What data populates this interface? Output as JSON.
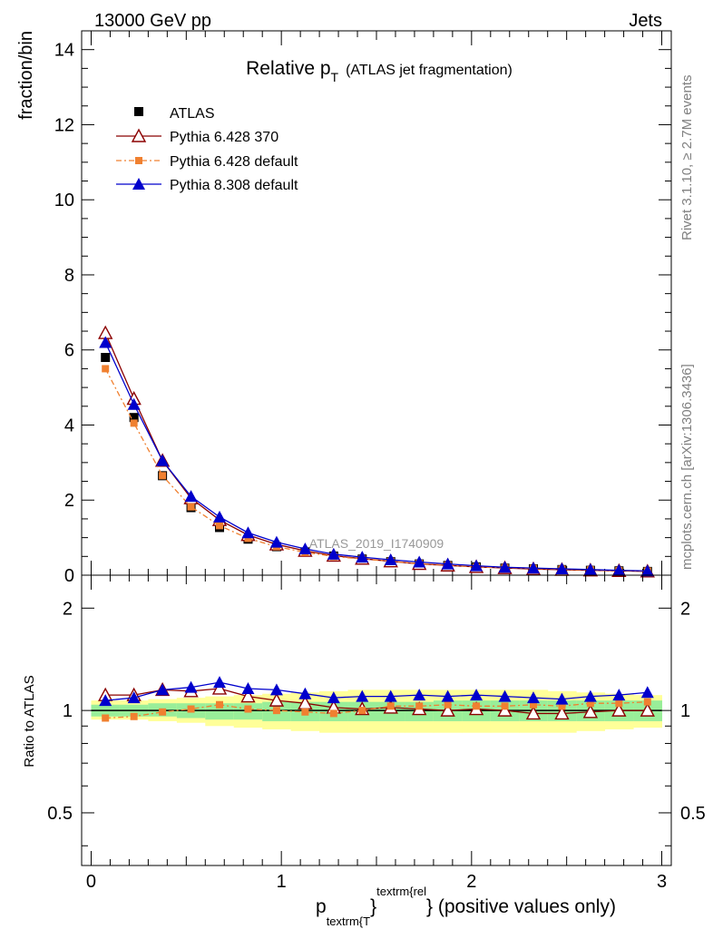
{
  "header": {
    "left": "13000 GeV pp",
    "right": "Jets"
  },
  "side_texts": {
    "rivet": "Rivet 3.1.10, ≥ 2.7M events",
    "mcplots": "mcplots.cern.ch [arXiv:1306.3436]"
  },
  "chart_data": {
    "type": "line",
    "title": "Relative p",
    "title_sub": "T",
    "title_suffix": "(ATLAS jet fragmentation)",
    "watermark": "ATLAS_2019_I1740909",
    "xlabel": {
      "p": "p",
      "sub": "textrm{T",
      "brace": "}",
      "sup": "textrm{rel",
      "tail": "} (positive values only)"
    },
    "ylabel": "fraction/bin",
    "ratio_ylabel": "Ratio to ATLAS",
    "xlim": [
      -0.05,
      3.05
    ],
    "ylim": [
      0,
      14.5
    ],
    "ratio_ylim_log": [
      0.35,
      2.5
    ],
    "x_ticks": [
      0,
      1,
      2,
      3
    ],
    "y_ticks": [
      0,
      2,
      4,
      6,
      8,
      10,
      12,
      14
    ],
    "ratio_ticks": [
      0.5,
      1,
      2
    ],
    "x": [
      0.075,
      0.225,
      0.375,
      0.525,
      0.675,
      0.825,
      0.975,
      1.125,
      1.275,
      1.425,
      1.575,
      1.725,
      1.875,
      2.025,
      2.175,
      2.325,
      2.475,
      2.625,
      2.775,
      2.925
    ],
    "series": [
      {
        "name": "ATLAS",
        "color": "#000000",
        "marker": "square-filled",
        "line": "none",
        "values": [
          5.8,
          4.2,
          2.65,
          1.8,
          1.27,
          0.96,
          0.76,
          0.62,
          0.51,
          0.43,
          0.36,
          0.3,
          0.26,
          0.22,
          0.19,
          0.17,
          0.15,
          0.13,
          0.115,
          0.1
        ]
      },
      {
        "name": "Pythia 6.428 370",
        "color": "#8b0000",
        "marker": "triangle-open",
        "line": "solid",
        "values": [
          6.45,
          4.7,
          3.05,
          2.05,
          1.47,
          1.07,
          0.82,
          0.65,
          0.52,
          0.44,
          0.37,
          0.3,
          0.26,
          0.22,
          0.19,
          0.165,
          0.145,
          0.13,
          0.115,
          0.1
        ]
      },
      {
        "name": "Pythia 6.428 default",
        "color": "#f08030",
        "marker": "square-small",
        "line": "dashdot",
        "values": [
          5.5,
          4.05,
          2.65,
          1.82,
          1.32,
          0.98,
          0.76,
          0.61,
          0.5,
          0.43,
          0.37,
          0.31,
          0.27,
          0.22,
          0.2,
          0.18,
          0.16,
          0.14,
          0.12,
          0.11
        ]
      },
      {
        "name": "Pythia 8.308 default",
        "color": "#0000cc",
        "marker": "triangle-filled",
        "line": "solid",
        "values": [
          6.2,
          4.55,
          3.05,
          2.1,
          1.55,
          1.13,
          0.88,
          0.7,
          0.56,
          0.48,
          0.41,
          0.35,
          0.3,
          0.25,
          0.21,
          0.19,
          0.17,
          0.15,
          0.13,
          0.115
        ]
      }
    ],
    "ratios": [
      {
        "name": "Pythia 6.428 370",
        "values": [
          1.11,
          1.11,
          1.15,
          1.14,
          1.16,
          1.1,
          1.07,
          1.05,
          1.02,
          1.01,
          1.02,
          1.01,
          1.0,
          1.01,
          1.0,
          0.98,
          0.98,
          0.99,
          1.0,
          1.0
        ]
      },
      {
        "name": "Pythia 6.428 default",
        "values": [
          0.95,
          0.96,
          0.99,
          1.01,
          1.04,
          1.01,
          1.0,
          0.99,
          0.98,
          1.0,
          1.03,
          1.03,
          1.04,
          1.03,
          1.03,
          1.04,
          1.03,
          1.05,
          1.05,
          1.06
        ]
      },
      {
        "name": "Pythia 8.308 default",
        "values": [
          1.07,
          1.09,
          1.15,
          1.17,
          1.21,
          1.16,
          1.15,
          1.12,
          1.09,
          1.1,
          1.1,
          1.11,
          1.1,
          1.11,
          1.1,
          1.09,
          1.08,
          1.1,
          1.11,
          1.13
        ]
      }
    ],
    "band_green": [
      [
        0.96,
        1.04
      ],
      [
        0.96,
        1.04
      ],
      [
        0.96,
        1.05
      ],
      [
        0.95,
        1.05
      ],
      [
        0.94,
        1.05
      ],
      [
        0.94,
        1.05
      ],
      [
        0.93,
        1.06
      ],
      [
        0.93,
        1.06
      ],
      [
        0.93,
        1.06
      ],
      [
        0.93,
        1.06
      ],
      [
        0.93,
        1.06
      ],
      [
        0.93,
        1.06
      ],
      [
        0.93,
        1.07
      ],
      [
        0.93,
        1.07
      ],
      [
        0.93,
        1.07
      ],
      [
        0.93,
        1.07
      ],
      [
        0.93,
        1.07
      ],
      [
        0.93,
        1.07
      ],
      [
        0.93,
        1.07
      ],
      [
        0.93,
        1.07
      ]
    ],
    "band_yellow": [
      [
        0.94,
        1.07
      ],
      [
        0.94,
        1.07
      ],
      [
        0.93,
        1.08
      ],
      [
        0.92,
        1.09
      ],
      [
        0.9,
        1.1
      ],
      [
        0.89,
        1.11
      ],
      [
        0.88,
        1.12
      ],
      [
        0.87,
        1.13
      ],
      [
        0.86,
        1.14
      ],
      [
        0.86,
        1.15
      ],
      [
        0.86,
        1.15
      ],
      [
        0.86,
        1.15
      ],
      [
        0.86,
        1.15
      ],
      [
        0.86,
        1.15
      ],
      [
        0.86,
        1.15
      ],
      [
        0.86,
        1.15
      ],
      [
        0.86,
        1.14
      ],
      [
        0.87,
        1.13
      ],
      [
        0.88,
        1.12
      ],
      [
        0.89,
        1.11
      ]
    ]
  }
}
